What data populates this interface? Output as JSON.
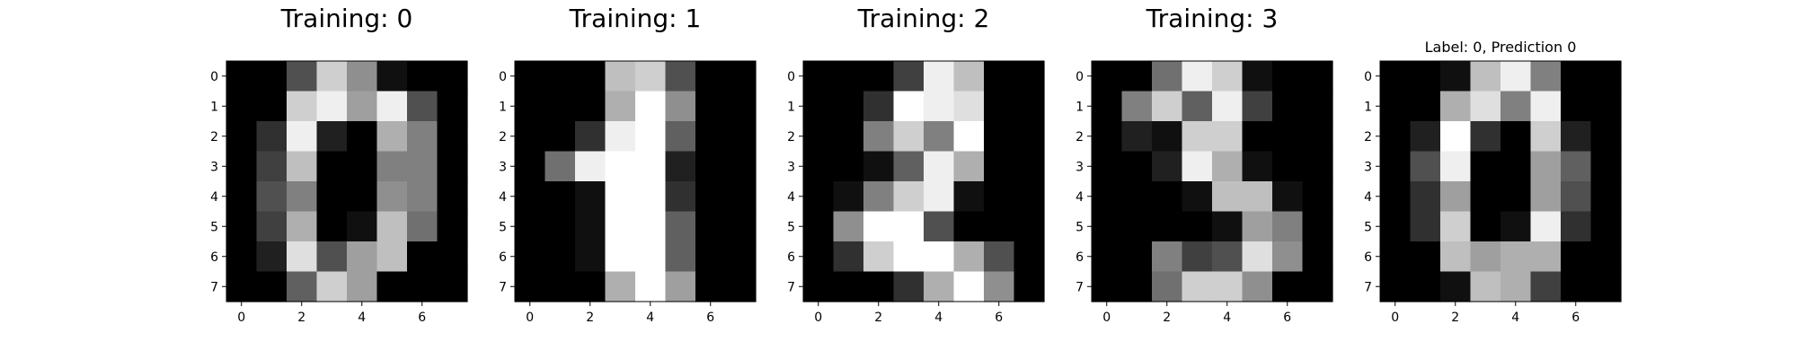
{
  "chart_data": [
    {
      "type": "heatmap",
      "title": "Training: 0",
      "colormap": "gray",
      "vlim": [
        0,
        16
      ],
      "xticks": [
        0,
        2,
        4,
        6
      ],
      "yticks": [
        0,
        1,
        2,
        3,
        4,
        5,
        6,
        7
      ],
      "values": [
        [
          0,
          0,
          5,
          13,
          9,
          1,
          0,
          0
        ],
        [
          0,
          0,
          13,
          15,
          10,
          15,
          5,
          0
        ],
        [
          0,
          3,
          15,
          2,
          0,
          11,
          8,
          0
        ],
        [
          0,
          4,
          12,
          0,
          0,
          8,
          8,
          0
        ],
        [
          0,
          5,
          8,
          0,
          0,
          9,
          8,
          0
        ],
        [
          0,
          4,
          11,
          0,
          1,
          12,
          7,
          0
        ],
        [
          0,
          2,
          14,
          5,
          10,
          12,
          0,
          0
        ],
        [
          0,
          0,
          6,
          13,
          10,
          0,
          0,
          0
        ]
      ]
    },
    {
      "type": "heatmap",
      "title": "Training: 1",
      "colormap": "gray",
      "vlim": [
        0,
        16
      ],
      "xticks": [
        0,
        2,
        4,
        6
      ],
      "yticks": [
        0,
        1,
        2,
        3,
        4,
        5,
        6,
        7
      ],
      "values": [
        [
          0,
          0,
          0,
          12,
          13,
          5,
          0,
          0
        ],
        [
          0,
          0,
          0,
          11,
          16,
          9,
          0,
          0
        ],
        [
          0,
          0,
          3,
          15,
          16,
          6,
          0,
          0
        ],
        [
          0,
          7,
          15,
          16,
          16,
          2,
          0,
          0
        ],
        [
          0,
          0,
          1,
          16,
          16,
          3,
          0,
          0
        ],
        [
          0,
          0,
          1,
          16,
          16,
          6,
          0,
          0
        ],
        [
          0,
          0,
          1,
          16,
          16,
          6,
          0,
          0
        ],
        [
          0,
          0,
          0,
          11,
          16,
          10,
          0,
          0
        ]
      ]
    },
    {
      "type": "heatmap",
      "title": "Training: 2",
      "colormap": "gray",
      "vlim": [
        0,
        16
      ],
      "xticks": [
        0,
        2,
        4,
        6
      ],
      "yticks": [
        0,
        1,
        2,
        3,
        4,
        5,
        6,
        7
      ],
      "values": [
        [
          0,
          0,
          0,
          4,
          15,
          12,
          0,
          0
        ],
        [
          0,
          0,
          3,
          16,
          15,
          14,
          0,
          0
        ],
        [
          0,
          0,
          8,
          13,
          8,
          16,
          0,
          0
        ],
        [
          0,
          0,
          1,
          6,
          15,
          11,
          0,
          0
        ],
        [
          0,
          1,
          8,
          13,
          15,
          1,
          0,
          0
        ],
        [
          0,
          9,
          16,
          16,
          5,
          0,
          0,
          0
        ],
        [
          0,
          3,
          13,
          16,
          16,
          11,
          5,
          0
        ],
        [
          0,
          0,
          0,
          3,
          11,
          16,
          9,
          0
        ]
      ]
    },
    {
      "type": "heatmap",
      "title": "Training: 3",
      "colormap": "gray",
      "vlim": [
        0,
        16
      ],
      "xticks": [
        0,
        2,
        4,
        6
      ],
      "yticks": [
        0,
        1,
        2,
        3,
        4,
        5,
        6,
        7
      ],
      "values": [
        [
          0,
          0,
          7,
          15,
          13,
          1,
          0,
          0
        ],
        [
          0,
          8,
          13,
          6,
          15,
          4,
          0,
          0
        ],
        [
          0,
          2,
          1,
          13,
          13,
          0,
          0,
          0
        ],
        [
          0,
          0,
          2,
          15,
          11,
          1,
          0,
          0
        ],
        [
          0,
          0,
          0,
          1,
          12,
          12,
          1,
          0
        ],
        [
          0,
          0,
          0,
          0,
          1,
          10,
          8,
          0
        ],
        [
          0,
          0,
          8,
          4,
          5,
          14,
          9,
          0
        ],
        [
          0,
          0,
          7,
          13,
          13,
          9,
          0,
          0
        ]
      ]
    },
    {
      "type": "heatmap",
      "title": "Label: 0, Prediction 0",
      "colormap": "gray",
      "vlim": [
        0,
        16
      ],
      "xticks": [
        0,
        2,
        4,
        6
      ],
      "yticks": [
        0,
        1,
        2,
        3,
        4,
        5,
        6,
        7
      ],
      "values": [
        [
          0,
          0,
          1,
          12,
          15,
          8,
          0,
          0
        ],
        [
          0,
          0,
          11,
          14,
          8,
          15,
          0,
          0
        ],
        [
          0,
          2,
          16,
          3,
          0,
          13,
          2,
          0
        ],
        [
          0,
          5,
          15,
          0,
          0,
          10,
          6,
          0
        ],
        [
          0,
          3,
          10,
          0,
          0,
          10,
          5,
          0
        ],
        [
          0,
          3,
          13,
          0,
          1,
          15,
          3,
          0
        ],
        [
          0,
          0,
          12,
          10,
          11,
          11,
          0,
          0
        ],
        [
          0,
          0,
          1,
          12,
          11,
          4,
          0,
          0
        ]
      ]
    }
  ]
}
